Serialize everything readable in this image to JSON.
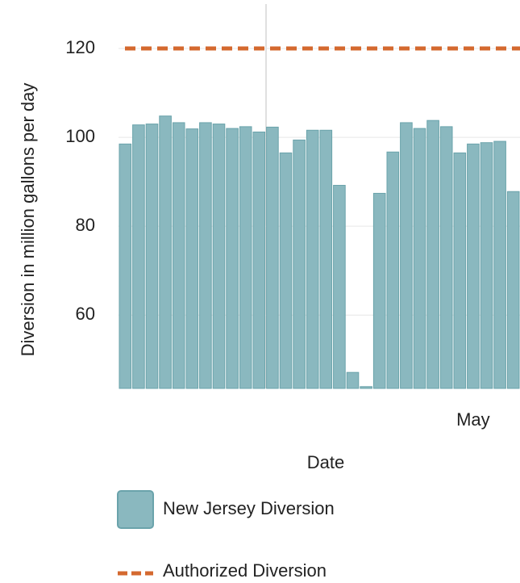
{
  "chart_data": {
    "type": "bar",
    "x_label": "Date",
    "y_label": "Diversion in million gallons per day",
    "categories": [
      null,
      null,
      null,
      null,
      null,
      null,
      null,
      null,
      null,
      null,
      null,
      null,
      null,
      null,
      null,
      null,
      null,
      null,
      null,
      null,
      null,
      null,
      null,
      null,
      null,
      null,
      "May",
      null,
      null,
      null
    ],
    "series": [
      {
        "name": "New Jersey Diversion",
        "color": "#8ab8bf",
        "type": "bar",
        "values": [
          98.5,
          102.8,
          103,
          104.8,
          103.3,
          101.9,
          103.3,
          103,
          102,
          102.4,
          101.2,
          102.3,
          96.5,
          99.4,
          101.6,
          101.6,
          89.2,
          47.1,
          43.9,
          87.4,
          96.7,
          103.3,
          102,
          103.8,
          102.4,
          96.5,
          98.5,
          98.8,
          99.1,
          87.8
        ]
      },
      {
        "name": "Authorized Diversion",
        "color": "#d4692f",
        "type": "line",
        "values": [
          120,
          120,
          120,
          120,
          120,
          120,
          120,
          120,
          120,
          120,
          120,
          120,
          120,
          120,
          120,
          120,
          120,
          120,
          120,
          120,
          120,
          120,
          120,
          120,
          120,
          120,
          120,
          120,
          120,
          120
        ]
      }
    ],
    "ylim": [
      43.5,
      130
    ],
    "yticks": [
      60,
      80,
      100,
      120
    ],
    "grid": true
  }
}
